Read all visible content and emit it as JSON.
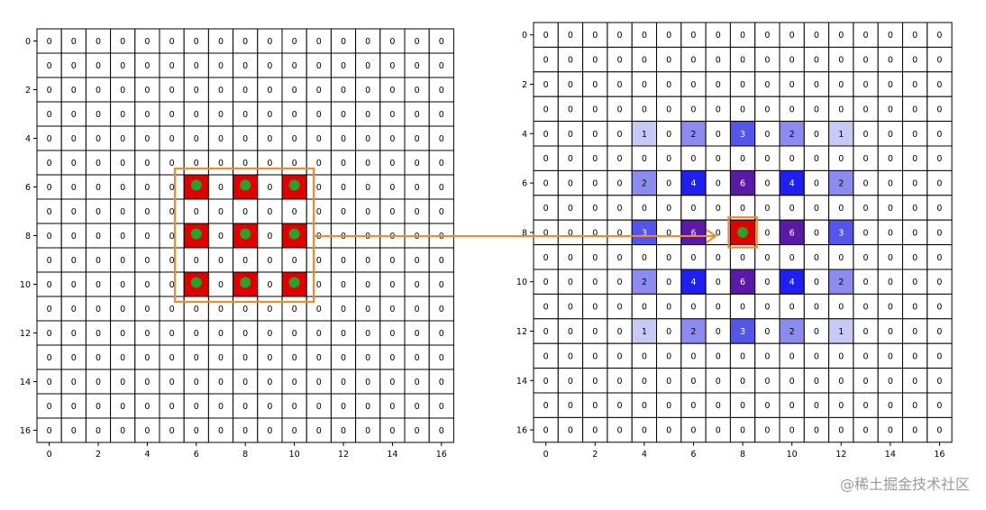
{
  "left_grid": {
    "size": 17,
    "default_value": "0",
    "y_tick_labels": [
      "0",
      "2",
      "4",
      "6",
      "8",
      "10",
      "12",
      "14",
      "16"
    ],
    "x_tick_labels": [
      "0",
      "2",
      "4",
      "6",
      "8",
      "10",
      "12",
      "14",
      "16"
    ],
    "red_cells": [
      [
        6,
        6
      ],
      [
        6,
        8
      ],
      [
        6,
        10
      ],
      [
        8,
        6
      ],
      [
        8,
        8
      ],
      [
        8,
        10
      ],
      [
        10,
        6
      ],
      [
        10,
        8
      ],
      [
        10,
        10
      ]
    ],
    "cell_fill_color": "#e00000",
    "dot_color": "#2ca02c",
    "highlight_box_color": "#f08a30"
  },
  "right_grid": {
    "size": 17,
    "default_value": "0",
    "y_tick_labels": [
      "0",
      "2",
      "4",
      "6",
      "8",
      "10",
      "12",
      "14",
      "16"
    ],
    "x_tick_labels": [
      "0",
      "2",
      "4",
      "6",
      "8",
      "10",
      "12",
      "14",
      "16"
    ],
    "colored_cells": [
      {
        "row": 4,
        "col": 4,
        "value": "1"
      },
      {
        "row": 4,
        "col": 6,
        "value": "2"
      },
      {
        "row": 4,
        "col": 8,
        "value": "3"
      },
      {
        "row": 4,
        "col": 10,
        "value": "2"
      },
      {
        "row": 4,
        "col": 12,
        "value": "1"
      },
      {
        "row": 6,
        "col": 4,
        "value": "2"
      },
      {
        "row": 6,
        "col": 6,
        "value": "4"
      },
      {
        "row": 6,
        "col": 8,
        "value": "6"
      },
      {
        "row": 6,
        "col": 10,
        "value": "4"
      },
      {
        "row": 6,
        "col": 12,
        "value": "2"
      },
      {
        "row": 8,
        "col": 4,
        "value": "3"
      },
      {
        "row": 8,
        "col": 6,
        "value": "6"
      },
      {
        "row": 8,
        "col": 8,
        "value": "9"
      },
      {
        "row": 8,
        "col": 10,
        "value": "6"
      },
      {
        "row": 8,
        "col": 12,
        "value": "3"
      },
      {
        "row": 10,
        "col": 4,
        "value": "2"
      },
      {
        "row": 10,
        "col": 6,
        "value": "4"
      },
      {
        "row": 10,
        "col": 8,
        "value": "6"
      },
      {
        "row": 10,
        "col": 10,
        "value": "4"
      },
      {
        "row": 10,
        "col": 12,
        "value": "2"
      },
      {
        "row": 12,
        "col": 4,
        "value": "1"
      },
      {
        "row": 12,
        "col": 6,
        "value": "2"
      },
      {
        "row": 12,
        "col": 8,
        "value": "3"
      },
      {
        "row": 12,
        "col": 10,
        "value": "2"
      },
      {
        "row": 12,
        "col": 12,
        "value": "1"
      }
    ],
    "center_cell": [
      8,
      8
    ],
    "value_colors": {
      "1": "#c9c9f6",
      "2": "#8c8cf0",
      "3": "#5555ea",
      "4": "#1f1ff0",
      "6": "#5a1aa6",
      "9": "#e00000"
    },
    "dot_color": "#2ca02c",
    "highlight_box_color": "#f08a30"
  },
  "arrow_color": "#f08a30",
  "watermark": "@稀土掘金技术社区"
}
